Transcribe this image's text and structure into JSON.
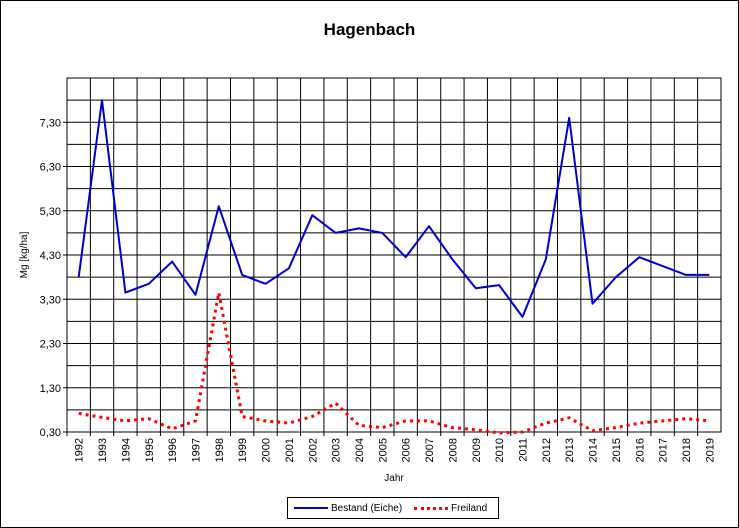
{
  "chart_data": {
    "type": "line",
    "title": "Hagenbach",
    "xlabel": "Jahr",
    "ylabel": "Mg [kg/ha]",
    "ylim": [
      0.3,
      8.3
    ],
    "yticks": [
      "0,30",
      "1,30",
      "2,30",
      "3,30",
      "4,30",
      "5,30",
      "6,30",
      "7,30"
    ],
    "ytick_values": [
      0.3,
      1.3,
      2.3,
      3.3,
      4.3,
      5.3,
      6.3,
      7.3
    ],
    "x": [
      "1992",
      "1993",
      "1994",
      "1995",
      "1996",
      "1997",
      "1998",
      "1999",
      "2000",
      "2001",
      "2002",
      "2003",
      "2004",
      "2005",
      "2006",
      "2007",
      "2008",
      "2009",
      "2010",
      "2011",
      "2012",
      "2013",
      "2014",
      "2015",
      "2016",
      "2017",
      "2018",
      "2019"
    ],
    "grid": true,
    "legend_position": "bottom",
    "series": [
      {
        "name": "Bestand (Eiche)",
        "color": "#0000cc",
        "style": "solid",
        "values": [
          3.8,
          7.8,
          3.45,
          3.65,
          4.15,
          3.4,
          5.4,
          3.85,
          3.65,
          4.0,
          5.2,
          4.8,
          4.9,
          4.8,
          4.25,
          4.95,
          4.2,
          3.55,
          3.62,
          2.9,
          4.2,
          7.4,
          3.2,
          3.8,
          4.25,
          4.05,
          3.85,
          3.85
        ]
      },
      {
        "name": "Freiland",
        "color": "#ff0000",
        "style": "dotted",
        "values": [
          0.72,
          0.63,
          0.55,
          0.6,
          0.37,
          0.55,
          3.45,
          0.65,
          0.55,
          0.5,
          0.65,
          0.95,
          0.45,
          0.4,
          0.55,
          0.55,
          0.4,
          0.35,
          0.28,
          0.3,
          0.5,
          0.62,
          0.33,
          0.4,
          0.5,
          0.55,
          0.6,
          0.55
        ]
      }
    ]
  }
}
